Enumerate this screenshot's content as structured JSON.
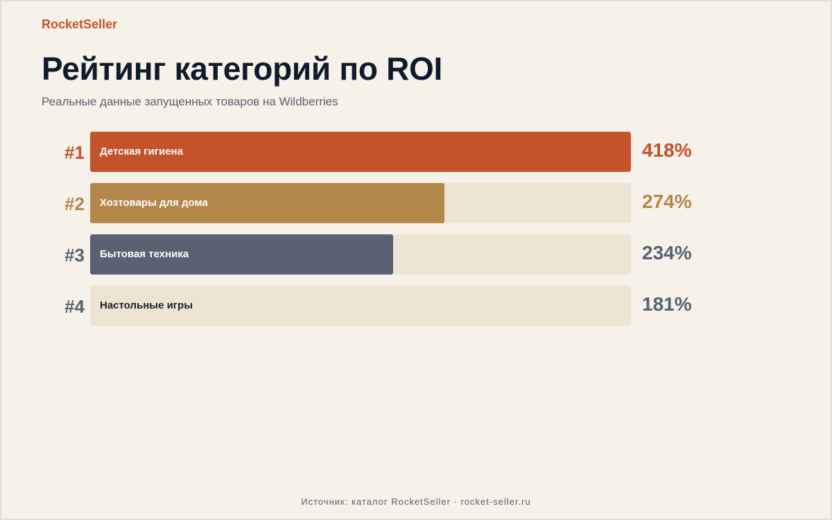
{
  "brand": "RocketSeller",
  "title": "Рейтинг категорий по ROI",
  "subtitle": "Реальные данные запущенных товаров на Wildberries",
  "footer": "Источник: каталог RocketSeller · rocket-seller.ru",
  "chart_data": {
    "type": "bar",
    "orientation": "horizontal",
    "xlim": [
      0,
      418
    ],
    "grid": false,
    "legend": "none",
    "categories": [
      "Детская гигиена",
      "Хозтовары для дома",
      "Бытовая техника",
      "Настольные игры"
    ],
    "ranks": [
      "#1",
      "#2",
      "#3",
      "#4"
    ],
    "values": [
      418,
      274,
      234,
      181
    ],
    "value_labels": [
      "418%",
      "274%",
      "234%",
      "181%"
    ],
    "colors": [
      "#c4522b",
      "#b4874a",
      "#586272",
      "#ede4d3"
    ],
    "rank_colors": [
      "#c4522b",
      "#b4874a",
      "#586272",
      "#586272"
    ],
    "label_colors": [
      "#ffffff",
      "#ffffff",
      "#ffffff",
      "#1a1f2b"
    ]
  }
}
